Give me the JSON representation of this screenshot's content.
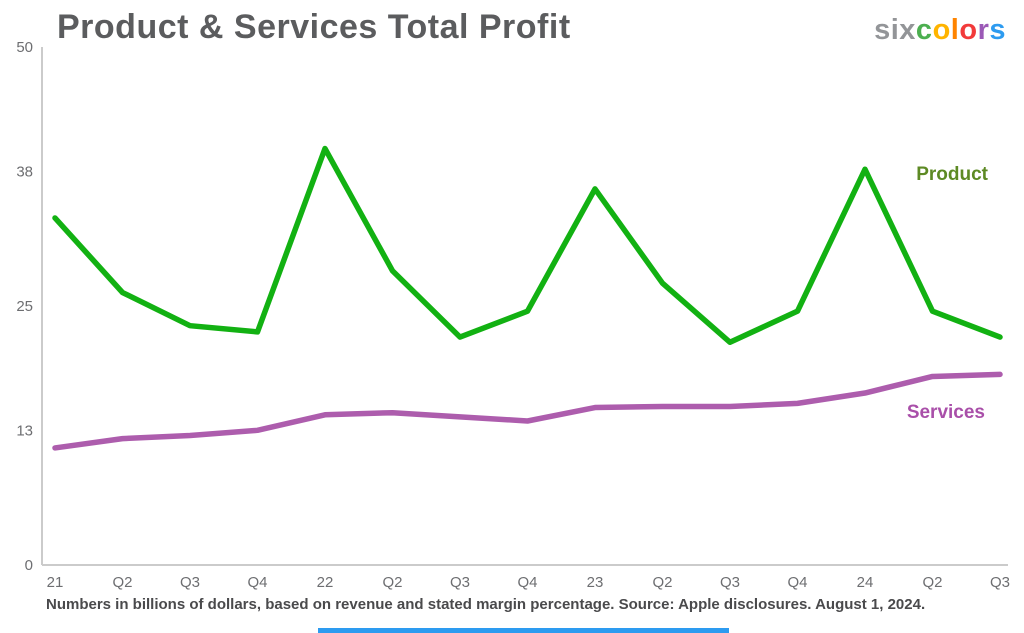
{
  "header": {
    "title": "Product & Services Total Profit",
    "logo": {
      "prefix": "six",
      "letters": [
        {
          "char": "c",
          "color": "#4caf50"
        },
        {
          "char": "o",
          "color": "#ffb400"
        },
        {
          "char": "l",
          "color": "#ff8400"
        },
        {
          "char": "o",
          "color": "#f23a3a"
        },
        {
          "char": "r",
          "color": "#9b59b6"
        },
        {
          "char": "s",
          "color": "#2d9bf0"
        }
      ]
    }
  },
  "chart_data": {
    "type": "line",
    "title": "Product & Services Total Profit",
    "categories": [
      "21",
      "Q2",
      "Q3",
      "Q4",
      "22",
      "Q2",
      "Q3",
      "Q4",
      "23",
      "Q2",
      "Q3",
      "Q4",
      "24",
      "Q2",
      "Q3"
    ],
    "series": [
      {
        "name": "Product",
        "color": "#12b112",
        "label_color": "#5d8a24",
        "values": [
          33.5,
          26.3,
          23.1,
          22.5,
          40.2,
          28.4,
          22.0,
          24.5,
          36.3,
          27.2,
          21.5,
          24.5,
          38.2,
          24.5,
          22.0
        ]
      },
      {
        "name": "Services",
        "color": "#ad5dad",
        "label_color": "#a94fa9",
        "values": [
          11.3,
          12.2,
          12.5,
          13.0,
          14.5,
          14.7,
          14.3,
          13.9,
          15.2,
          15.3,
          15.3,
          15.6,
          16.6,
          18.2,
          18.4
        ]
      }
    ],
    "xlabel": "",
    "ylabel": "",
    "ylim": [
      0,
      50
    ],
    "yticks": [
      0,
      13,
      25,
      38,
      50
    ],
    "grid": false,
    "legend_position": "inline-right"
  },
  "footer": {
    "caption": "Numbers in billions of dollars, based on revenue and stated margin percentage. Source: Apple disclosures. August 1, 2024.",
    "accent_bar_color": "#2d9bf0"
  }
}
